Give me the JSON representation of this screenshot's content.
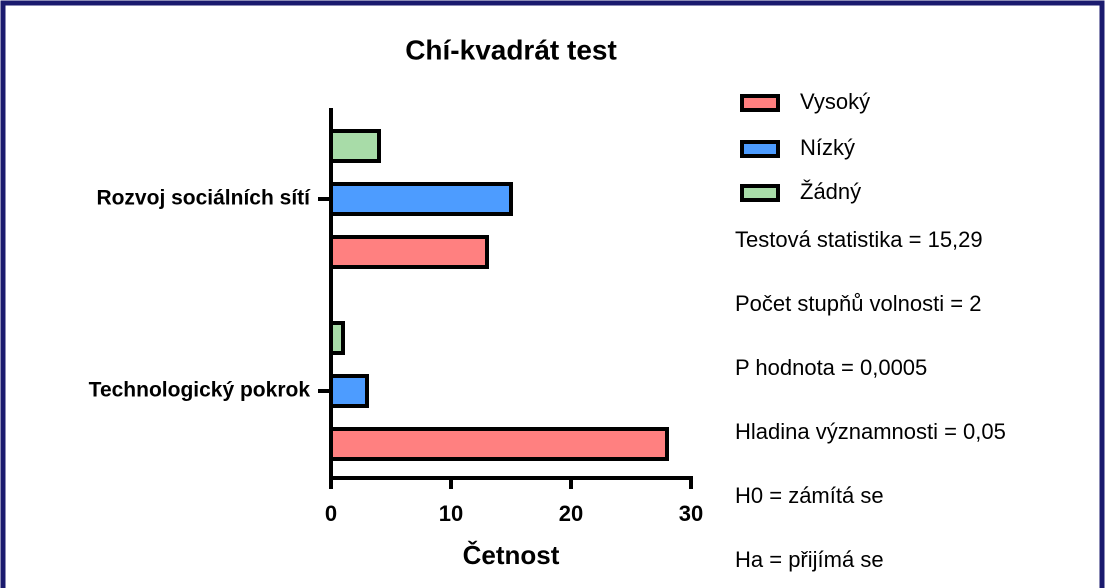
{
  "chart_data": {
    "type": "bar",
    "orientation": "horizontal",
    "title": "Chí-kvadrát test",
    "xlabel": "Četnost",
    "categories": [
      "Rozvoj sociálních sítí",
      "Technologický pokrok"
    ],
    "series": [
      {
        "name": "Vysoký",
        "color": "#ff8080",
        "values": [
          13,
          28
        ]
      },
      {
        "name": "Nízký",
        "color": "#4d9cff",
        "values": [
          15,
          3
        ]
      },
      {
        "name": "Žádný",
        "color": "#a8dca8",
        "values": [
          4,
          1
        ]
      }
    ],
    "xlim": [
      0,
      30
    ],
    "xticks": [
      0,
      10,
      20,
      30
    ],
    "annotations": [
      "Testová statistika = 15,29",
      "Počet stupňů volnosti = 2",
      "P hodnota = 0,0005",
      "Hladina významnosti = 0,05",
      "H0 = zámítá se",
      "Ha = přijímá se"
    ]
  }
}
